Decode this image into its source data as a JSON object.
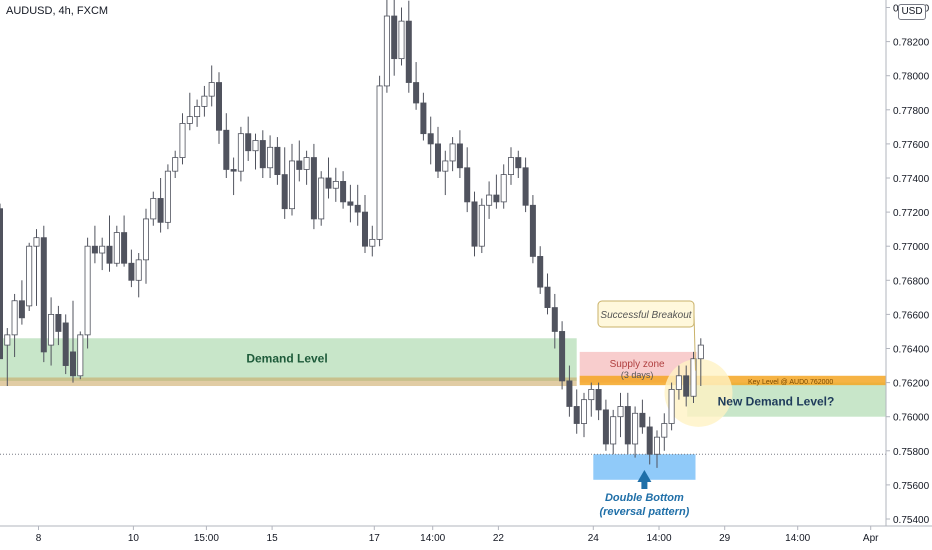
{
  "header": {
    "title": "AUDUSD, 4h, FXCM",
    "currency_button": "USD"
  },
  "chart_data": {
    "type": "candlestick",
    "symbol": "AUDUSD",
    "timeframe": "4h",
    "source": "FXCM",
    "ylim": [
      0.7534,
      0.7842
    ],
    "y_ticks": [
      "0.75400",
      "0.75600",
      "0.75800",
      "0.76000",
      "0.76200",
      "0.76400",
      "0.76600",
      "0.76800",
      "0.77000",
      "0.77200",
      "0.77400",
      "0.77600",
      "0.77800",
      "0.78000",
      "0.78200",
      "0.78400"
    ],
    "x_ticks": [
      "8",
      "10",
      "15:00",
      "15",
      "17",
      "14:00",
      "22",
      "24",
      "14:00",
      "29",
      "14:00",
      "Apr"
    ],
    "candles": [
      {
        "o": 0.7722,
        "h": 0.7725,
        "l": 0.7634,
        "c": 0.7634
      },
      {
        "o": 0.7642,
        "h": 0.7652,
        "l": 0.7618,
        "c": 0.7648
      },
      {
        "o": 0.7648,
        "h": 0.7672,
        "l": 0.7635,
        "c": 0.7668
      },
      {
        "o": 0.7668,
        "h": 0.768,
        "l": 0.7654,
        "c": 0.7658
      },
      {
        "o": 0.7665,
        "h": 0.7702,
        "l": 0.7662,
        "c": 0.77
      },
      {
        "o": 0.77,
        "h": 0.771,
        "l": 0.7665,
        "c": 0.7705
      },
      {
        "o": 0.7705,
        "h": 0.7712,
        "l": 0.7632,
        "c": 0.7638
      },
      {
        "o": 0.7642,
        "h": 0.767,
        "l": 0.763,
        "c": 0.766
      },
      {
        "o": 0.766,
        "h": 0.7665,
        "l": 0.7642,
        "c": 0.765
      },
      {
        "o": 0.7655,
        "h": 0.766,
        "l": 0.7625,
        "c": 0.763
      },
      {
        "o": 0.7638,
        "h": 0.7668,
        "l": 0.762,
        "c": 0.7624
      },
      {
        "o": 0.7624,
        "h": 0.765,
        "l": 0.7622,
        "c": 0.7648
      },
      {
        "o": 0.7648,
        "h": 0.7705,
        "l": 0.764,
        "c": 0.77
      },
      {
        "o": 0.77,
        "h": 0.7712,
        "l": 0.769,
        "c": 0.7696
      },
      {
        "o": 0.7696,
        "h": 0.7705,
        "l": 0.7686,
        "c": 0.77
      },
      {
        "o": 0.77,
        "h": 0.7718,
        "l": 0.7685,
        "c": 0.769
      },
      {
        "o": 0.769,
        "h": 0.7712,
        "l": 0.7688,
        "c": 0.7708
      },
      {
        "o": 0.7708,
        "h": 0.7718,
        "l": 0.7688,
        "c": 0.769
      },
      {
        "o": 0.769,
        "h": 0.7698,
        "l": 0.7676,
        "c": 0.768
      },
      {
        "o": 0.768,
        "h": 0.7696,
        "l": 0.767,
        "c": 0.7692
      },
      {
        "o": 0.7692,
        "h": 0.7722,
        "l": 0.7678,
        "c": 0.7716
      },
      {
        "o": 0.7716,
        "h": 0.7732,
        "l": 0.7712,
        "c": 0.7728
      },
      {
        "o": 0.7728,
        "h": 0.774,
        "l": 0.7708,
        "c": 0.7714
      },
      {
        "o": 0.7714,
        "h": 0.7748,
        "l": 0.771,
        "c": 0.7744
      },
      {
        "o": 0.7744,
        "h": 0.7756,
        "l": 0.774,
        "c": 0.7752
      },
      {
        "o": 0.7752,
        "h": 0.7778,
        "l": 0.7748,
        "c": 0.7772
      },
      {
        "o": 0.7772,
        "h": 0.779,
        "l": 0.7768,
        "c": 0.7776
      },
      {
        "o": 0.7776,
        "h": 0.7786,
        "l": 0.777,
        "c": 0.7782
      },
      {
        "o": 0.7782,
        "h": 0.7794,
        "l": 0.7776,
        "c": 0.7788
      },
      {
        "o": 0.7788,
        "h": 0.7806,
        "l": 0.7782,
        "c": 0.7796
      },
      {
        "o": 0.7796,
        "h": 0.7802,
        "l": 0.776,
        "c": 0.7768
      },
      {
        "o": 0.7768,
        "h": 0.7778,
        "l": 0.774,
        "c": 0.7745
      },
      {
        "o": 0.7745,
        "h": 0.7752,
        "l": 0.773,
        "c": 0.7744
      },
      {
        "o": 0.7744,
        "h": 0.777,
        "l": 0.7738,
        "c": 0.7766
      },
      {
        "o": 0.7766,
        "h": 0.7776,
        "l": 0.775,
        "c": 0.7756
      },
      {
        "o": 0.7756,
        "h": 0.7766,
        "l": 0.7745,
        "c": 0.7762
      },
      {
        "o": 0.7762,
        "h": 0.7768,
        "l": 0.774,
        "c": 0.7746
      },
      {
        "o": 0.7746,
        "h": 0.7765,
        "l": 0.774,
        "c": 0.7758
      },
      {
        "o": 0.7758,
        "h": 0.7764,
        "l": 0.7736,
        "c": 0.7742
      },
      {
        "o": 0.7742,
        "h": 0.7758,
        "l": 0.7716,
        "c": 0.7722
      },
      {
        "o": 0.7722,
        "h": 0.776,
        "l": 0.7718,
        "c": 0.775
      },
      {
        "o": 0.775,
        "h": 0.7762,
        "l": 0.7738,
        "c": 0.7745
      },
      {
        "o": 0.7745,
        "h": 0.7756,
        "l": 0.7736,
        "c": 0.7752
      },
      {
        "o": 0.7752,
        "h": 0.776,
        "l": 0.771,
        "c": 0.7716
      },
      {
        "o": 0.7716,
        "h": 0.7744,
        "l": 0.7712,
        "c": 0.774
      },
      {
        "o": 0.774,
        "h": 0.7752,
        "l": 0.7728,
        "c": 0.7734
      },
      {
        "o": 0.7734,
        "h": 0.7746,
        "l": 0.7726,
        "c": 0.7738
      },
      {
        "o": 0.7738,
        "h": 0.7744,
        "l": 0.7722,
        "c": 0.7726
      },
      {
        "o": 0.7726,
        "h": 0.7736,
        "l": 0.7714,
        "c": 0.7724
      },
      {
        "o": 0.7724,
        "h": 0.7736,
        "l": 0.7712,
        "c": 0.772
      },
      {
        "o": 0.772,
        "h": 0.773,
        "l": 0.7696,
        "c": 0.77
      },
      {
        "o": 0.77,
        "h": 0.7712,
        "l": 0.7694,
        "c": 0.7704
      },
      {
        "o": 0.7704,
        "h": 0.78,
        "l": 0.77,
        "c": 0.7794
      },
      {
        "o": 0.7794,
        "h": 0.7845,
        "l": 0.779,
        "c": 0.7835
      },
      {
        "o": 0.7835,
        "h": 0.7848,
        "l": 0.78,
        "c": 0.781
      },
      {
        "o": 0.781,
        "h": 0.784,
        "l": 0.7806,
        "c": 0.7832
      },
      {
        "o": 0.7832,
        "h": 0.7844,
        "l": 0.779,
        "c": 0.7796
      },
      {
        "o": 0.7796,
        "h": 0.7808,
        "l": 0.778,
        "c": 0.7784
      },
      {
        "o": 0.7784,
        "h": 0.779,
        "l": 0.7762,
        "c": 0.7766
      },
      {
        "o": 0.7766,
        "h": 0.7776,
        "l": 0.7748,
        "c": 0.776
      },
      {
        "o": 0.776,
        "h": 0.777,
        "l": 0.774,
        "c": 0.7744
      },
      {
        "o": 0.7744,
        "h": 0.7756,
        "l": 0.773,
        "c": 0.775
      },
      {
        "o": 0.775,
        "h": 0.7764,
        "l": 0.7744,
        "c": 0.776
      },
      {
        "o": 0.776,
        "h": 0.7768,
        "l": 0.774,
        "c": 0.7746
      },
      {
        "o": 0.7746,
        "h": 0.7758,
        "l": 0.772,
        "c": 0.7726
      },
      {
        "o": 0.7726,
        "h": 0.7732,
        "l": 0.7694,
        "c": 0.77
      },
      {
        "o": 0.77,
        "h": 0.7728,
        "l": 0.7696,
        "c": 0.7724
      },
      {
        "o": 0.7724,
        "h": 0.7738,
        "l": 0.7716,
        "c": 0.773
      },
      {
        "o": 0.773,
        "h": 0.7742,
        "l": 0.7722,
        "c": 0.7726
      },
      {
        "o": 0.7726,
        "h": 0.7748,
        "l": 0.7722,
        "c": 0.7742
      },
      {
        "o": 0.7742,
        "h": 0.7758,
        "l": 0.7736,
        "c": 0.7752
      },
      {
        "o": 0.7752,
        "h": 0.7756,
        "l": 0.774,
        "c": 0.7746
      },
      {
        "o": 0.7746,
        "h": 0.7752,
        "l": 0.772,
        "c": 0.7724
      },
      {
        "o": 0.7724,
        "h": 0.773,
        "l": 0.769,
        "c": 0.7694
      },
      {
        "o": 0.7694,
        "h": 0.77,
        "l": 0.7672,
        "c": 0.7676
      },
      {
        "o": 0.7676,
        "h": 0.7684,
        "l": 0.766,
        "c": 0.7664
      },
      {
        "o": 0.7664,
        "h": 0.7672,
        "l": 0.764,
        "c": 0.765
      },
      {
        "o": 0.765,
        "h": 0.7656,
        "l": 0.7616,
        "c": 0.7621
      },
      {
        "o": 0.7621,
        "h": 0.763,
        "l": 0.76,
        "c": 0.7606
      },
      {
        "o": 0.7606,
        "h": 0.7616,
        "l": 0.759,
        "c": 0.7596
      },
      {
        "o": 0.7596,
        "h": 0.7614,
        "l": 0.7588,
        "c": 0.761
      },
      {
        "o": 0.761,
        "h": 0.762,
        "l": 0.76,
        "c": 0.7616
      },
      {
        "o": 0.7616,
        "h": 0.762,
        "l": 0.7598,
        "c": 0.7604
      },
      {
        "o": 0.7604,
        "h": 0.761,
        "l": 0.758,
        "c": 0.7584
      },
      {
        "o": 0.7584,
        "h": 0.7604,
        "l": 0.7578,
        "c": 0.76
      },
      {
        "o": 0.76,
        "h": 0.7614,
        "l": 0.7588,
        "c": 0.7606
      },
      {
        "o": 0.7606,
        "h": 0.7614,
        "l": 0.7578,
        "c": 0.7584
      },
      {
        "o": 0.7584,
        "h": 0.7606,
        "l": 0.7576,
        "c": 0.7602
      },
      {
        "o": 0.7602,
        "h": 0.761,
        "l": 0.759,
        "c": 0.7594
      },
      {
        "o": 0.7594,
        "h": 0.76,
        "l": 0.7572,
        "c": 0.7578
      },
      {
        "o": 0.7578,
        "h": 0.7592,
        "l": 0.757,
        "c": 0.7588
      },
      {
        "o": 0.7588,
        "h": 0.7602,
        "l": 0.758,
        "c": 0.7596
      },
      {
        "o": 0.7596,
        "h": 0.762,
        "l": 0.7592,
        "c": 0.7616
      },
      {
        "o": 0.7616,
        "h": 0.763,
        "l": 0.761,
        "c": 0.7624
      },
      {
        "o": 0.7624,
        "h": 0.763,
        "l": 0.7606,
        "c": 0.7612
      },
      {
        "o": 0.7612,
        "h": 0.7638,
        "l": 0.7608,
        "c": 0.7634
      },
      {
        "o": 0.7634,
        "h": 0.7646,
        "l": 0.7618,
        "c": 0.7642
      }
    ],
    "zones": [
      {
        "name": "Demand Level",
        "from": 0.7621,
        "to": 0.7646,
        "color": "#c8e6c9"
      },
      {
        "name": "Key Level",
        "price": 0.762,
        "color": "#f5a623"
      },
      {
        "name": "Supply zone",
        "from": 0.762,
        "to": 0.7638,
        "color": "#f8c8c8"
      },
      {
        "name": "New Demand Level?",
        "from": 0.76,
        "to": 0.762,
        "color": "#c8e6c9"
      },
      {
        "name": "Double Bottom",
        "from": 0.7563,
        "to": 0.7578,
        "color": "#90caf9"
      }
    ],
    "reference_line": 0.7578,
    "colors": {
      "bull": "#ffffff",
      "bear": "#50535e",
      "wick": "#50535e"
    }
  },
  "annotations": {
    "demand_level": "Demand Level",
    "supply_zone_line1": "Supply zone",
    "supply_zone_line2": "(3 days)",
    "key_level": "Key Level @ AUD0.762000",
    "new_demand_level": "New Demand Level?",
    "successful_breakout": "Successful Breakout",
    "double_bottom_line1": "Double Bottom",
    "double_bottom_line2": "(reversal pattern)"
  }
}
